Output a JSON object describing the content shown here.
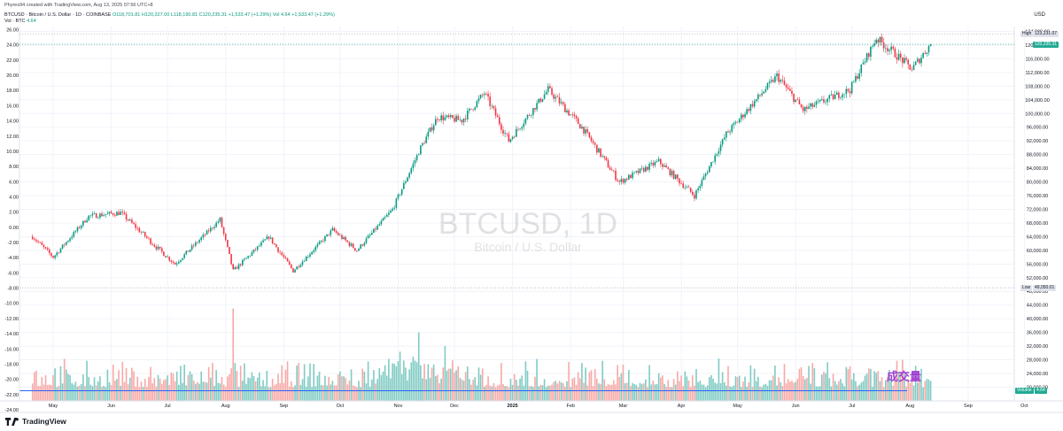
{
  "header": {
    "credit": "Phyres94 created with TradingView.com, Aug 13, 2025 07:56 UTC+8",
    "symbol": "BTCUSD · Bitcoin / U.S. Dollar · 1D · COINBASE",
    "ohlc": "O118,701.81  H120,327.00  L118,190.81  C120,235.31  +1,533.47 (+1.29%)",
    "vol_change": "Vol 4.64  +1,533.47 (+1.29%)",
    "vol_label": "Vol · BTC",
    "vol_value": "4.64",
    "currency": "USD"
  },
  "watermark": {
    "symbol": "BTCUSD, 1D",
    "description": "Bitcoin / U.S. Dollar"
  },
  "annotation": "成交量",
  "brand": "TradingView",
  "colors": {
    "up": "#089981",
    "down": "#f23645",
    "vol_up": "#80cbc4",
    "vol_down": "#f7a9a7",
    "avg_line": "#2962ff",
    "tag_green": "#22ab94",
    "accent": "#a040d0"
  },
  "price_tags": {
    "high_label": "High",
    "high_value": "123,231.07",
    "last_value": "120,235.31",
    "low_label": "Low",
    "low_value": "49,050.01",
    "vol_label": "Volume",
    "vol_value": "4.64"
  },
  "chart_data": {
    "type": "candlestick",
    "interval": "1D",
    "title": "BTCUSD, 1D",
    "right_axis_ticks": [
      "124,000.00",
      "120,000.00",
      "116,000.00",
      "112,000.00",
      "108,000.00",
      "104,000.00",
      "100,000.00",
      "96,000.00",
      "92,000.00",
      "88,000.00",
      "84,000.00",
      "80,000.00",
      "76,000.00",
      "72,000.00",
      "68,000.00",
      "64,000.00",
      "60,000.00",
      "56,000.00",
      "52,000.00",
      "48,000.00",
      "44,000.00",
      "40,000.00",
      "36,000.00",
      "32,000.00",
      "28,000.00",
      "24,000.00",
      "20,000.00"
    ],
    "left_axis_ticks": [
      "26.00",
      "24.00",
      "22.00",
      "20.00",
      "18.00",
      "16.00",
      "14.00",
      "12.00",
      "10.00",
      "8.00",
      "6.00",
      "4.00",
      "2.00",
      "0.00",
      "-2.00",
      "-4.00",
      "-6.00",
      "-8.00",
      "-10.00",
      "-12.00",
      "-14.00",
      "-16.00",
      "-18.00",
      "-20.00",
      "-22.00",
      "-24.00"
    ],
    "x_axis_labels": [
      "May",
      "Jun",
      "Jul",
      "Aug",
      "Sep",
      "Oct",
      "Nov",
      "Dec",
      "2025",
      "Feb",
      "Mar",
      "Apr",
      "May",
      "Jun",
      "Jul",
      "Aug",
      "Sep",
      "Oct"
    ],
    "price_anchors": [
      {
        "date": "2024-04-20",
        "close": 64000
      },
      {
        "date": "2024-05-01",
        "close": 58000
      },
      {
        "date": "2024-05-20",
        "close": 70000
      },
      {
        "date": "2024-06-06",
        "close": 71000
      },
      {
        "date": "2024-06-25",
        "close": 61000
      },
      {
        "date": "2024-07-05",
        "close": 56000
      },
      {
        "date": "2024-07-29",
        "close": 69000
      },
      {
        "date": "2024-08-05",
        "close": 54000
      },
      {
        "date": "2024-08-24",
        "close": 64000
      },
      {
        "date": "2024-09-06",
        "close": 54000
      },
      {
        "date": "2024-09-27",
        "close": 66000
      },
      {
        "date": "2024-10-10",
        "close": 60000
      },
      {
        "date": "2024-10-29",
        "close": 72000
      },
      {
        "date": "2024-11-13",
        "close": 90000
      },
      {
        "date": "2024-11-22",
        "close": 99000
      },
      {
        "date": "2024-12-05",
        "close": 98000
      },
      {
        "date": "2024-12-17",
        "close": 106000
      },
      {
        "date": "2024-12-30",
        "close": 92000
      },
      {
        "date": "2025-01-20",
        "close": 107000
      },
      {
        "date": "2025-02-07",
        "close": 96000
      },
      {
        "date": "2025-02-27",
        "close": 80000
      },
      {
        "date": "2025-03-20",
        "close": 86000
      },
      {
        "date": "2025-04-08",
        "close": 76000
      },
      {
        "date": "2025-04-25",
        "close": 94000
      },
      {
        "date": "2025-05-22",
        "close": 111000
      },
      {
        "date": "2025-06-05",
        "close": 101000
      },
      {
        "date": "2025-06-30",
        "close": 107000
      },
      {
        "date": "2025-07-14",
        "close": 122000
      },
      {
        "date": "2025-07-25",
        "close": 117000
      },
      {
        "date": "2025-08-02",
        "close": 113000
      },
      {
        "date": "2025-08-12",
        "close": 120235
      }
    ],
    "volume_spikes": [
      {
        "date": "2024-08-05",
        "volume": 43000
      },
      {
        "date": "2024-11-12",
        "volume": 36000
      },
      {
        "date": "2025-07-28",
        "volume": 28000
      }
    ],
    "high": 123231.07,
    "low": 49050.01,
    "last": 120235.31,
    "volume_last": 4.64
  }
}
